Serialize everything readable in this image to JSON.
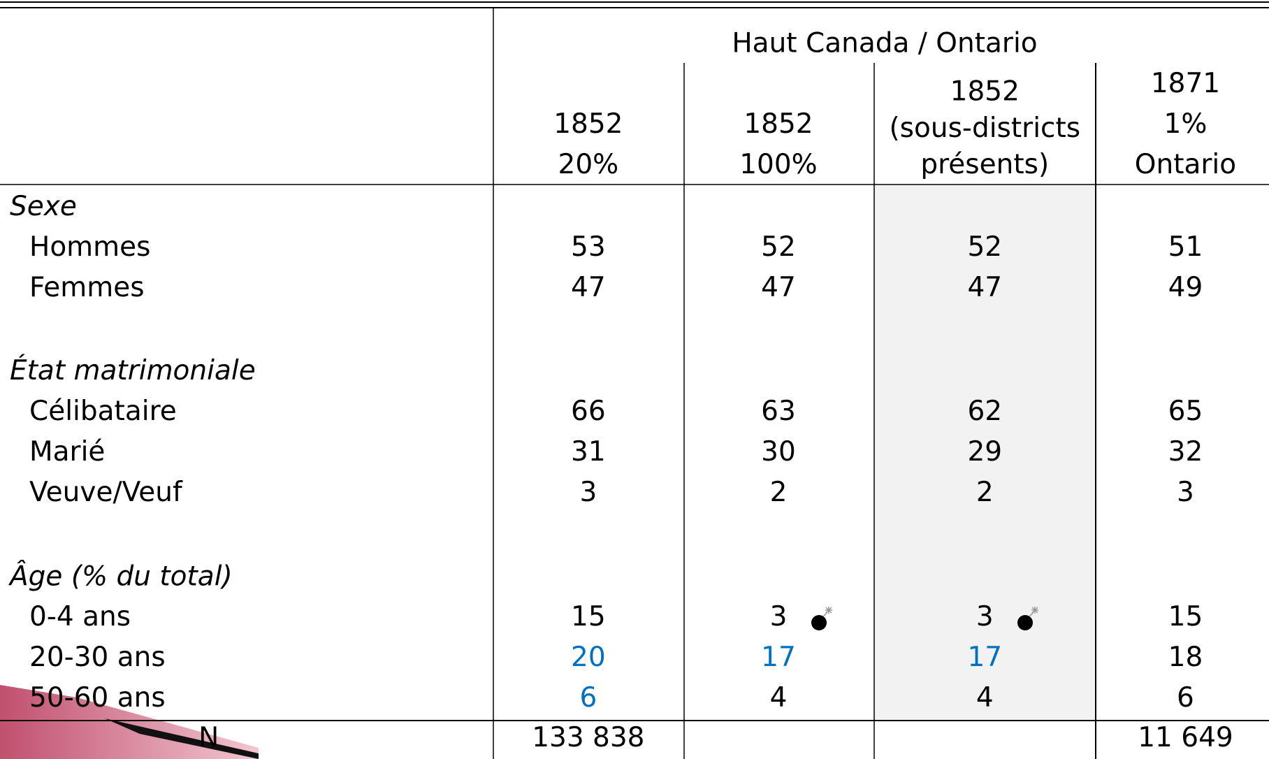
{
  "header": {
    "group": "Haut Canada / Ontario",
    "columns": [
      [
        "1852",
        "20%"
      ],
      [
        "1852",
        "100%"
      ],
      [
        "1852",
        "(sous-districts",
        "présents)"
      ],
      [
        "1871",
        "1%",
        "Ontario"
      ]
    ]
  },
  "highlight_color": "#0070c0",
  "sections": [
    {
      "title": "Sexe",
      "rows": [
        {
          "label": "Hommes",
          "values": [
            53,
            52,
            52,
            51
          ]
        },
        {
          "label": "Femmes",
          "values": [
            47,
            47,
            47,
            49
          ]
        }
      ]
    },
    {
      "title": "État matrimoniale",
      "rows": [
        {
          "label": "Célibataire",
          "values": [
            66,
            63,
            62,
            65
          ]
        },
        {
          "label": "Marié",
          "values": [
            31,
            30,
            29,
            32
          ]
        },
        {
          "label": "Veuve/Veuf",
          "values": [
            3,
            2,
            2,
            3
          ]
        }
      ]
    },
    {
      "title": "Âge (% du total)",
      "rows": [
        {
          "label": "0-4 ans",
          "values": [
            15,
            3,
            3,
            15
          ]
        },
        {
          "label": "20-30 ans",
          "values": [
            20,
            17,
            17,
            18
          ],
          "highlighted": [
            true,
            true,
            true,
            false
          ]
        },
        {
          "label": "50-60 ans",
          "values": [
            6,
            4,
            4,
            6
          ],
          "highlighted": [
            true,
            false,
            false,
            false
          ]
        }
      ]
    }
  ],
  "total": {
    "label": "N",
    "values": [
      "133 838",
      null,
      null,
      "11 649"
    ]
  }
}
